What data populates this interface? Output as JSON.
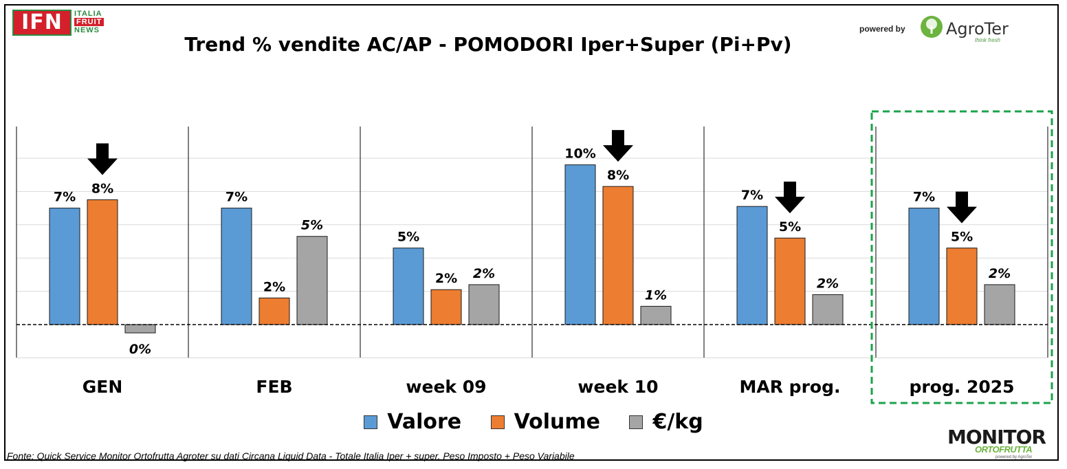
{
  "header": {
    "ifn_logo": {
      "mark": "IFN",
      "words": [
        "ITALIA",
        "FRUIT",
        "NEWS"
      ]
    },
    "powered_by": "powered by",
    "agroter_logo": {
      "name": "AgroTer",
      "tagline": "think fresh"
    }
  },
  "footer": {
    "source": "Fonte: Quick Service Monitor Ortofrutta Agroter su dati Circana Liquid Data - Totale Italia Iper + super, Peso Imposto + Peso Variabile",
    "monitor_logo": {
      "word": "MONITOR",
      "sub": "ORTOFRUTTA",
      "powered": "powered by AgroTer"
    }
  },
  "chart_data": {
    "type": "bar",
    "title": "Trend % vendite AC/AP - POMODORI  Iper+Super (Pi+Pv)",
    "categories": [
      "GEN",
      "FEB",
      "week 09",
      "week 10",
      "MAR prog.",
      "prog. 2025"
    ],
    "series": [
      {
        "name": "Valore",
        "color": "#5b9bd5",
        "values": [
          7.0,
          7.0,
          4.6,
          9.6,
          7.1,
          7.0
        ],
        "labels": [
          "7%",
          "7%",
          "5%",
          "10%",
          "7%",
          "7%"
        ],
        "label_italic": false
      },
      {
        "name": "Volume",
        "color": "#ed7d31",
        "values": [
          7.5,
          1.6,
          2.1,
          8.3,
          5.2,
          4.6
        ],
        "labels": [
          "8%",
          "2%",
          "2%",
          "8%",
          "5%",
          "5%"
        ],
        "label_italic": false
      },
      {
        "name": "€/kg",
        "color": "#a5a5a5",
        "values": [
          -0.5,
          5.3,
          2.4,
          1.1,
          1.8,
          2.4
        ],
        "labels": [
          "0%",
          "5%",
          "2%",
          "1%",
          "2%",
          "2%"
        ],
        "label_italic": true
      }
    ],
    "arrows": [
      {
        "category": "GEN",
        "series": "Volume",
        "direction": "down"
      },
      {
        "category": "week 10",
        "series": "Volume",
        "direction": "down"
      },
      {
        "category": "MAR prog.",
        "series": "Volume",
        "direction": "down"
      },
      {
        "category": "prog. 2025",
        "series": "Volume",
        "direction": "down"
      }
    ],
    "highlight_category": "prog. 2025",
    "ylim": [
      -2,
      12
    ],
    "gridlines": true,
    "legend_position": "bottom",
    "xlabel": "",
    "ylabel": ""
  }
}
